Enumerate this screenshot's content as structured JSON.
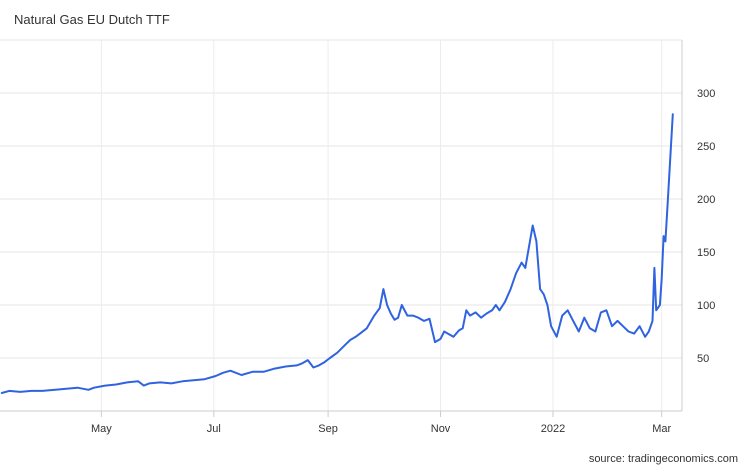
{
  "chart_data": {
    "type": "line",
    "title": "Natural Gas EU Dutch TTF",
    "source": "source: tradingeconomics.com",
    "xlabel": "",
    "ylabel": "",
    "ylim": [
      0,
      350
    ],
    "y_ticks": [
      50,
      100,
      150,
      200,
      250,
      300
    ],
    "x_ticks": [
      {
        "label": "May",
        "date": "2021-05-01"
      },
      {
        "label": "Jul",
        "date": "2021-07-01"
      },
      {
        "label": "Sep",
        "date": "2021-09-01"
      },
      {
        "label": "Nov",
        "date": "2021-11-01"
      },
      {
        "label": "2022",
        "date": "2022-01-01"
      },
      {
        "label": "Mar",
        "date": "2022-03-01"
      }
    ],
    "grid": true,
    "line_color": "#2f63e0",
    "series": [
      {
        "x": [
          "2021-03-08",
          "2021-03-12",
          "2021-03-18",
          "2021-03-24",
          "2021-03-30",
          "2021-04-06",
          "2021-04-12",
          "2021-04-18",
          "2021-04-24",
          "2021-04-27",
          "2021-05-03",
          "2021-05-09",
          "2021-05-15",
          "2021-05-21",
          "2021-05-24",
          "2021-05-27",
          "2021-06-02",
          "2021-06-08",
          "2021-06-14",
          "2021-06-20",
          "2021-06-26",
          "2021-07-02",
          "2021-07-06",
          "2021-07-10",
          "2021-07-16",
          "2021-07-22",
          "2021-07-28",
          "2021-08-03",
          "2021-08-09",
          "2021-08-15",
          "2021-08-18",
          "2021-08-21",
          "2021-08-24",
          "2021-08-27",
          "2021-08-30",
          "2021-09-02",
          "2021-09-06",
          "2021-09-10",
          "2021-09-13",
          "2021-09-16",
          "2021-09-19",
          "2021-09-22",
          "2021-09-26",
          "2021-09-29",
          "2021-10-01",
          "2021-10-03",
          "2021-10-05",
          "2021-10-07",
          "2021-10-09",
          "2021-10-11",
          "2021-10-14",
          "2021-10-17",
          "2021-10-20",
          "2021-10-23",
          "2021-10-26",
          "2021-10-29",
          "2021-11-01",
          "2021-11-03",
          "2021-11-05",
          "2021-11-08",
          "2021-11-11",
          "2021-11-13",
          "2021-11-15",
          "2021-11-17",
          "2021-11-20",
          "2021-11-23",
          "2021-11-26",
          "2021-11-29",
          "2021-12-01",
          "2021-12-03",
          "2021-12-06",
          "2021-12-09",
          "2021-12-12",
          "2021-12-15",
          "2021-12-17",
          "2021-12-19",
          "2021-12-21",
          "2021-12-23",
          "2021-12-25",
          "2021-12-27",
          "2021-12-29",
          "2021-12-31",
          "2022-01-03",
          "2022-01-06",
          "2022-01-09",
          "2022-01-12",
          "2022-01-15",
          "2022-01-18",
          "2022-01-21",
          "2022-01-24",
          "2022-01-27",
          "2022-01-30",
          "2022-02-02",
          "2022-02-05",
          "2022-02-08",
          "2022-02-11",
          "2022-02-14",
          "2022-02-17",
          "2022-02-20",
          "2022-02-22",
          "2022-02-24",
          "2022-02-25",
          "2022-02-26",
          "2022-02-28",
          "2022-03-01",
          "2022-03-02",
          "2022-03-03",
          "2022-03-04",
          "2022-03-07"
        ],
        "y": [
          17,
          19,
          18,
          19,
          19,
          20,
          21,
          22,
          20,
          22,
          24,
          25,
          27,
          28,
          24,
          26,
          27,
          26,
          28,
          29,
          30,
          33,
          36,
          38,
          34,
          37,
          37,
          40,
          42,
          43,
          45,
          48,
          41,
          43,
          46,
          50,
          55,
          62,
          67,
          70,
          74,
          78,
          90,
          97,
          115,
          100,
          92,
          86,
          88,
          100,
          90,
          90,
          88,
          85,
          87,
          65,
          68,
          75,
          73,
          70,
          76,
          78,
          95,
          90,
          93,
          88,
          92,
          95,
          100,
          95,
          103,
          115,
          130,
          140,
          135,
          155,
          175,
          160,
          115,
          110,
          100,
          80,
          70,
          90,
          95,
          85,
          75,
          88,
          78,
          75,
          93,
          95,
          80,
          85,
          80,
          75,
          73,
          80,
          70,
          75,
          85,
          135,
          95,
          100,
          125,
          165,
          160,
          190,
          280
        ]
      }
    ]
  }
}
